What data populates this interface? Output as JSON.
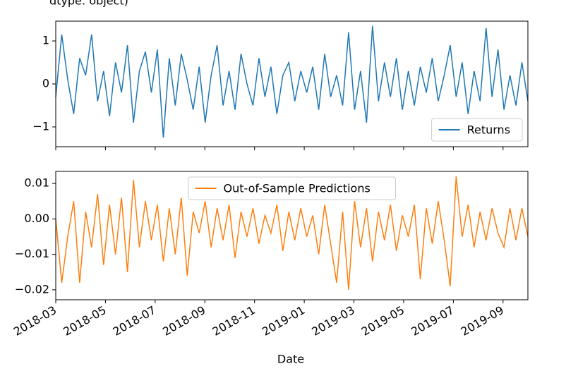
{
  "header_text": "dtype: object)",
  "chart_data": [
    {
      "type": "line",
      "legend": "lower right",
      "ylim": [
        -1.46,
        1.46
      ],
      "yticks": [
        1,
        0,
        {
          "value": -1,
          "label": "−1"
        }
      ],
      "series": [
        {
          "name": "Returns",
          "color": "#1f77b4",
          "values": [
            -0.3,
            1.15,
            0.1,
            -0.7,
            0.6,
            0.2,
            1.15,
            -0.4,
            0.3,
            -0.75,
            0.5,
            -0.2,
            0.9,
            -0.9,
            0.3,
            0.75,
            -0.2,
            0.8,
            -1.25,
            0.6,
            -0.5,
            0.7,
            0.1,
            -0.6,
            0.4,
            -0.9,
            0.2,
            0.9,
            -0.5,
            0.3,
            -0.6,
            0.7,
            0.0,
            -0.5,
            0.6,
            -0.3,
            0.4,
            -0.7,
            0.2,
            0.5,
            -0.4,
            0.3,
            -0.2,
            0.4,
            -0.6,
            0.7,
            -0.3,
            0.2,
            -0.5,
            1.2,
            -0.6,
            0.3,
            -0.9,
            1.35,
            -0.4,
            0.5,
            -0.3,
            0.6,
            -0.6,
            0.3,
            -0.5,
            0.4,
            -0.2,
            0.6,
            -0.4,
            0.2,
            0.9,
            -0.3,
            0.5,
            -0.7,
            0.3,
            -0.4,
            1.3,
            -0.3,
            0.8,
            -0.6,
            0.2,
            -0.5,
            0.5,
            -0.4
          ]
        }
      ]
    },
    {
      "type": "line",
      "legend": "upper center",
      "xlabel": "Date",
      "xlim": [
        "2018-03",
        "2019-10"
      ],
      "xticks": [
        "2018-03",
        "2018-05",
        "2018-07",
        "2018-09",
        "2018-11",
        "2019-01",
        "2019-03",
        "2019-05",
        "2019-07",
        "2019-09"
      ],
      "ylim": [
        -0.0228,
        0.0134
      ],
      "yticks": [
        0.01,
        {
          "value": 0,
          "label": "0.00"
        },
        {
          "value": -0.01,
          "label": "−0.01"
        },
        {
          "value": -0.02,
          "label": "−0.02"
        }
      ],
      "series": [
        {
          "name": "Out-of-Sample Predictions",
          "color": "#ff7f0e",
          "values": [
            0.0,
            -0.018,
            -0.005,
            0.005,
            -0.018,
            0.002,
            -0.008,
            0.007,
            -0.013,
            0.004,
            -0.01,
            0.006,
            -0.015,
            0.011,
            -0.008,
            0.005,
            -0.006,
            0.004,
            -0.012,
            0.003,
            -0.01,
            0.006,
            -0.016,
            0.002,
            -0.004,
            0.005,
            -0.008,
            0.003,
            -0.006,
            0.004,
            -0.011,
            0.002,
            -0.005,
            0.003,
            -0.007,
            0.001,
            -0.004,
            0.004,
            -0.009,
            0.002,
            -0.006,
            0.003,
            -0.005,
            0.001,
            -0.01,
            0.004,
            -0.007,
            -0.018,
            0.002,
            -0.02,
            0.005,
            -0.008,
            0.003,
            -0.012,
            0.002,
            -0.006,
            0.004,
            -0.009,
            0.001,
            -0.005,
            0.004,
            -0.017,
            0.003,
            -0.007,
            0.005,
            -0.006,
            -0.019,
            0.012,
            -0.005,
            0.004,
            -0.008,
            0.002,
            -0.006,
            0.003,
            -0.004,
            -0.008,
            0.003,
            -0.006,
            0.003,
            -0.005
          ]
        }
      ]
    }
  ]
}
